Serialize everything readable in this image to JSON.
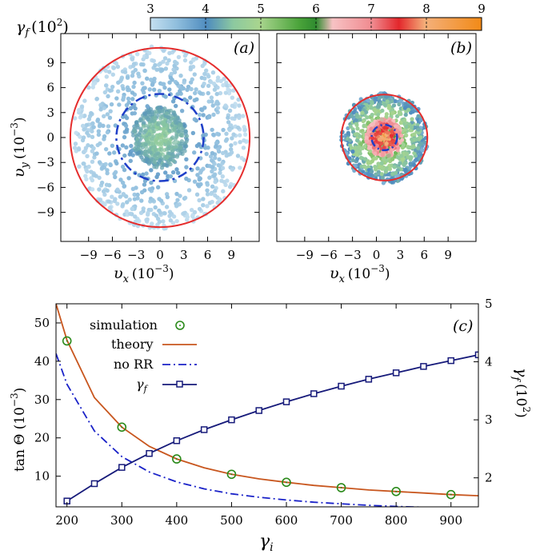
{
  "colorbar": {
    "label": "γf (10²)",
    "label_main": "γ",
    "label_sub": "f",
    "label_unit": "(10",
    "label_exp": "2",
    "label_close": ")",
    "min": 3,
    "max": 9,
    "ticks": [
      "3",
      "4",
      "5",
      "6",
      "7",
      "8",
      "9"
    ],
    "colors": [
      "#b8d8ea",
      "#4f8cbf",
      "#a9d58e",
      "#4aa33a",
      "#f5a3a8",
      "#e3272c",
      "#f7a35a",
      "#f28a17"
    ]
  },
  "panel_a": {
    "label": "(a)",
    "xlabel_sym": "υ",
    "xlabel_sub": "x",
    "xlabel_unit": "(10",
    "xlabel_exp": "−3",
    "xlabel_close": ")",
    "ylabel_sym": "υ",
    "ylabel_sub": "y",
    "ylabel_unit": "(10",
    "ylabel_exp": "−3",
    "ylabel_close": ")",
    "xticks": [
      "−9",
      "−6",
      "−3",
      "0",
      "3",
      "6",
      "9"
    ],
    "yticks": [
      "9",
      "6",
      "3",
      "0",
      "−3",
      "−6",
      "−9"
    ]
  },
  "panel_b": {
    "label": "(b)",
    "xlabel_sym": "υ",
    "xlabel_sub": "x",
    "xlabel_unit": "(10",
    "xlabel_exp": "−3",
    "xlabel_close": ")",
    "xticks": [
      "−9",
      "−6",
      "−3",
      "0",
      "3",
      "6",
      "9"
    ]
  },
  "panel_c": {
    "label": "(c)",
    "xlabel_sym": "γ",
    "xlabel_sub": "i",
    "ylabel_left": "tan Θ (10",
    "ylabel_left_exp": "−3",
    "ylabel_left_close": ")",
    "ylabel_right_sym": "γ",
    "ylabel_right_sub": "f",
    "ylabel_right_unit": "(10",
    "ylabel_right_exp": "2",
    "ylabel_right_close": ")",
    "xticks": [
      "200",
      "300",
      "400",
      "500",
      "600",
      "700",
      "800",
      "900"
    ],
    "yticks_left": [
      "10",
      "20",
      "30",
      "40",
      "50"
    ],
    "yticks_right": [
      "2",
      "3",
      "4",
      "5"
    ],
    "legend": {
      "simulation": "simulation",
      "theory": "theory",
      "norr": "no RR",
      "gf_sym": "γ",
      "gf_sub": "f"
    }
  },
  "chart_data": [
    {
      "type": "scatter",
      "panel": "(a)",
      "xlabel": "υx (10−3)",
      "ylabel": "υy (10−3)",
      "xlim": [
        -12.5,
        12.5
      ],
      "ylim": [
        -12.5,
        12.5
      ],
      "color_variable": "γf (10²)",
      "series": [
        {
          "shape": "circle",
          "radius": 11.3,
          "color": "#e52d2d",
          "style": "solid"
        },
        {
          "shape": "circle",
          "radius": 5.5,
          "color": "#1f3fc8",
          "style": "dashed"
        }
      ],
      "scatter_points": {
        "outer_radius": 11,
        "core_radius": 3.5,
        "gamma_f_range": [
          3,
          4.2
        ]
      }
    },
    {
      "type": "scatter",
      "panel": "(b)",
      "xlabel": "υx (10−3)",
      "xlim": [
        -12.5,
        12.5
      ],
      "ylim": [
        -12.5,
        12.5
      ],
      "color_variable": "γf (10²)",
      "series": [
        {
          "shape": "circle",
          "radius": 5.4,
          "center": [
            1,
            0
          ],
          "color": "#e52d2d",
          "style": "solid"
        },
        {
          "shape": "circle",
          "radius": 1.6,
          "center": [
            1,
            0
          ],
          "color": "#1f3fc8",
          "style": "dashed"
        }
      ],
      "scatter_points": {
        "outer_radius": 5.4,
        "center": [
          1,
          0
        ],
        "gamma_f_range": [
          3.5,
          8.5
        ]
      }
    },
    {
      "type": "line",
      "panel": "(c)",
      "xlabel": "γi",
      "ylabel": "tan Θ (10−3)",
      "ylabel_right": "γf (10²)",
      "xlim": [
        180,
        950
      ],
      "ylim": [
        2,
        55
      ],
      "ylim_right": [
        1.5,
        5
      ],
      "series": [
        {
          "name": "simulation",
          "axis": "left",
          "marker": "circle",
          "color": "#2a8a1a",
          "x": [
            200,
            300,
            400,
            500,
            600,
            700,
            800,
            900
          ],
          "y": [
            45.3,
            22.8,
            14.5,
            10.5,
            8.4,
            7.0,
            6.0,
            5.2
          ]
        },
        {
          "name": "theory",
          "axis": "left",
          "style": "solid",
          "color": "#c8561e",
          "x": [
            180,
            200,
            250,
            300,
            350,
            400,
            450,
            500,
            550,
            600,
            650,
            700,
            750,
            800,
            850,
            900,
            950
          ],
          "y": [
            55.0,
            45.5,
            30.5,
            22.8,
            17.8,
            14.5,
            12.2,
            10.5,
            9.3,
            8.4,
            7.6,
            7.0,
            6.4,
            6.0,
            5.6,
            5.2,
            4.9
          ]
        },
        {
          "name": "no RR",
          "axis": "left",
          "style": "dashdot",
          "color": "#1a22c8",
          "x": [
            180,
            200,
            250,
            300,
            350,
            400,
            450,
            500,
            550,
            600,
            650,
            700,
            750,
            800,
            850,
            900,
            950
          ],
          "y": [
            42.0,
            34.0,
            21.8,
            15.1,
            11.1,
            8.5,
            6.7,
            5.4,
            4.5,
            3.8,
            3.2,
            2.8,
            2.4,
            2.1,
            1.9,
            1.7,
            1.5
          ]
        },
        {
          "name": "γf",
          "axis": "right",
          "marker": "square",
          "color": "#161a7a",
          "x": [
            200,
            250,
            300,
            350,
            400,
            450,
            500,
            550,
            600,
            650,
            700,
            750,
            800,
            850,
            900,
            950
          ],
          "y": [
            1.6,
            1.9,
            2.18,
            2.42,
            2.64,
            2.83,
            3.0,
            3.16,
            3.31,
            3.45,
            3.58,
            3.7,
            3.81,
            3.92,
            4.02,
            4.12
          ]
        }
      ]
    }
  ]
}
